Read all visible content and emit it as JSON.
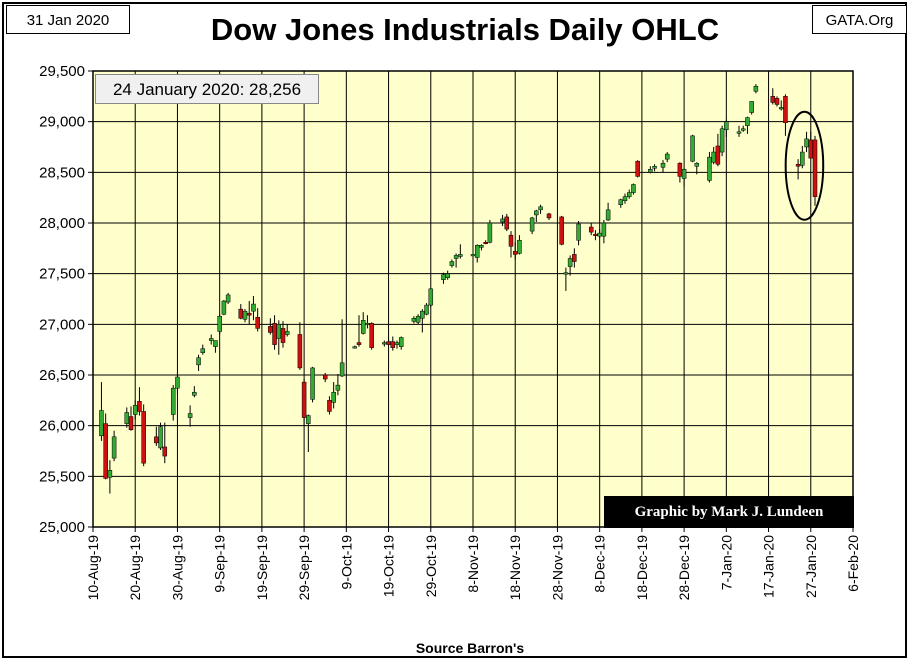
{
  "header": {
    "date": "31 Jan 2020",
    "site": "GATA.Org",
    "title": "Dow Jones Industrials Daily OHLC"
  },
  "annotation": "24 January 2020: 28,256",
  "credit": "Graphic by Mark J. Lundeen",
  "source": "Source Barron's",
  "colors": {
    "background": "#ffffcc",
    "up": "#33aa33",
    "down": "#cc1111",
    "grid": "#000000"
  },
  "chart_data": {
    "type": "ohlc-candlestick",
    "title": "Dow Jones Industrials Daily OHLC",
    "ylim": [
      25000,
      29500
    ],
    "yticks": [
      25000,
      25500,
      26000,
      26500,
      27000,
      27500,
      28000,
      28500,
      29000,
      29500
    ],
    "ytick_labels": [
      "25,000",
      "25,500",
      "26,000",
      "26,500",
      "27,000",
      "27,500",
      "28,000",
      "28,500",
      "29,000",
      "29,500"
    ],
    "xtick_labels": [
      "10-Aug-19",
      "20-Aug-19",
      "30-Aug-19",
      "9-Sep-19",
      "19-Sep-19",
      "29-Sep-19",
      "9-Oct-19",
      "19-Oct-19",
      "29-Oct-19",
      "8-Nov-19",
      "18-Nov-19",
      "28-Nov-19",
      "8-Dec-19",
      "18-Dec-19",
      "28-Dec-19",
      "7-Jan-20",
      "17-Jan-20",
      "27-Jan-20",
      "6-Feb-20"
    ],
    "xlim_days": [
      0,
      180
    ],
    "xtick_interval_days": 10,
    "highlight": {
      "label": "24 January 2020: 28,256",
      "days": [
        165,
        172
      ],
      "yrange": [
        28150,
        28980
      ]
    },
    "bars": [
      {
        "d": 2,
        "o": 25900,
        "h": 26430,
        "l": 25850,
        "c": 26150
      },
      {
        "d": 3,
        "o": 26020,
        "h": 26120,
        "l": 25470,
        "c": 25480
      },
      {
        "d": 4,
        "o": 25490,
        "h": 25660,
        "l": 25330,
        "c": 25560
      },
      {
        "d": 5,
        "o": 25680,
        "h": 25950,
        "l": 25650,
        "c": 25890
      },
      {
        "d": 8,
        "o": 26020,
        "h": 26180,
        "l": 25980,
        "c": 26130
      },
      {
        "d": 9,
        "o": 26090,
        "h": 26190,
        "l": 25950,
        "c": 25960
      },
      {
        "d": 10,
        "o": 26110,
        "h": 26250,
        "l": 26060,
        "c": 26200
      },
      {
        "d": 11,
        "o": 26240,
        "h": 26380,
        "l": 26100,
        "c": 26140
      },
      {
        "d": 12,
        "o": 26140,
        "h": 26210,
        "l": 25600,
        "c": 25630
      },
      {
        "d": 15,
        "o": 25890,
        "h": 25990,
        "l": 25800,
        "c": 25830
      },
      {
        "d": 16,
        "o": 25780,
        "h": 26030,
        "l": 25760,
        "c": 25990
      },
      {
        "d": 17,
        "o": 25790,
        "h": 26030,
        "l": 25630,
        "c": 25700
      },
      {
        "d": 19,
        "o": 26110,
        "h": 26400,
        "l": 26050,
        "c": 26370
      },
      {
        "d": 20,
        "o": 26370,
        "h": 26500,
        "l": 26320,
        "c": 26480
      },
      {
        "d": 23,
        "o": 26080,
        "h": 26200,
        "l": 25990,
        "c": 26120
      },
      {
        "d": 24,
        "o": 26300,
        "h": 26390,
        "l": 26280,
        "c": 26330
      },
      {
        "d": 25,
        "o": 26600,
        "h": 26700,
        "l": 26540,
        "c": 26670
      },
      {
        "d": 26,
        "o": 26720,
        "h": 26800,
        "l": 26700,
        "c": 26760
      },
      {
        "d": 28,
        "o": 26840,
        "h": 26900,
        "l": 26800,
        "c": 26860
      },
      {
        "d": 29,
        "o": 26780,
        "h": 26840,
        "l": 26720,
        "c": 26840
      },
      {
        "d": 30,
        "o": 26930,
        "h": 27100,
        "l": 26900,
        "c": 27080
      },
      {
        "d": 31,
        "o": 27100,
        "h": 27240,
        "l": 27090,
        "c": 27230
      },
      {
        "d": 32,
        "o": 27220,
        "h": 27310,
        "l": 27200,
        "c": 27290
      },
      {
        "d": 35,
        "o": 27150,
        "h": 27200,
        "l": 27050,
        "c": 27060
      },
      {
        "d": 36,
        "o": 27050,
        "h": 27150,
        "l": 27020,
        "c": 27130
      },
      {
        "d": 37,
        "o": 27110,
        "h": 27230,
        "l": 27000,
        "c": 27090
      },
      {
        "d": 38,
        "o": 27130,
        "h": 27280,
        "l": 27040,
        "c": 27200
      },
      {
        "d": 39,
        "o": 27070,
        "h": 27160,
        "l": 26930,
        "c": 26960
      },
      {
        "d": 42,
        "o": 26980,
        "h": 27060,
        "l": 26900,
        "c": 26920
      },
      {
        "d": 43,
        "o": 27010,
        "h": 27090,
        "l": 26750,
        "c": 26800
      },
      {
        "d": 44,
        "o": 26860,
        "h": 27040,
        "l": 26700,
        "c": 27000
      },
      {
        "d": 45,
        "o": 26960,
        "h": 27030,
        "l": 26770,
        "c": 26820
      },
      {
        "d": 46,
        "o": 26900,
        "h": 27000,
        "l": 26880,
        "c": 26930
      },
      {
        "d": 49,
        "o": 26900,
        "h": 27020,
        "l": 26550,
        "c": 26570
      },
      {
        "d": 50,
        "o": 26430,
        "h": 26460,
        "l": 26010,
        "c": 26080
      },
      {
        "d": 51,
        "o": 26020,
        "h": 26110,
        "l": 25740,
        "c": 26100
      },
      {
        "d": 52,
        "o": 26260,
        "h": 26580,
        "l": 26230,
        "c": 26570
      },
      {
        "d": 55,
        "o": 26500,
        "h": 26520,
        "l": 26430,
        "c": 26460
      },
      {
        "d": 56,
        "o": 26250,
        "h": 26290,
        "l": 26110,
        "c": 26140
      },
      {
        "d": 57,
        "o": 26230,
        "h": 26430,
        "l": 26170,
        "c": 26330
      },
      {
        "d": 58,
        "o": 26350,
        "h": 26510,
        "l": 26300,
        "c": 26400
      },
      {
        "d": 59,
        "o": 26490,
        "h": 27050,
        "l": 26480,
        "c": 26620
      },
      {
        "d": 62,
        "o": 26780,
        "h": 26790,
        "l": 26760,
        "c": 26780
      },
      {
        "d": 63,
        "o": 26820,
        "h": 27090,
        "l": 26780,
        "c": 26800
      },
      {
        "d": 64,
        "o": 26910,
        "h": 27120,
        "l": 26900,
        "c": 27040
      },
      {
        "d": 65,
        "o": 27000,
        "h": 27090,
        "l": 26960,
        "c": 27010
      },
      {
        "d": 66,
        "o": 27010,
        "h": 27020,
        "l": 26750,
        "c": 26770
      },
      {
        "d": 69,
        "o": 26810,
        "h": 26840,
        "l": 26780,
        "c": 26820
      },
      {
        "d": 70,
        "o": 26830,
        "h": 26870,
        "l": 26790,
        "c": 26800
      },
      {
        "d": 71,
        "o": 26830,
        "h": 26880,
        "l": 26740,
        "c": 26770
      },
      {
        "d": 72,
        "o": 26800,
        "h": 26840,
        "l": 26760,
        "c": 26820
      },
      {
        "d": 73,
        "o": 26780,
        "h": 26880,
        "l": 26750,
        "c": 26870
      },
      {
        "d": 76,
        "o": 27030,
        "h": 27080,
        "l": 27010,
        "c": 27060
      },
      {
        "d": 77,
        "o": 27020,
        "h": 27100,
        "l": 27000,
        "c": 27080
      },
      {
        "d": 78,
        "o": 27060,
        "h": 27150,
        "l": 26920,
        "c": 27130
      },
      {
        "d": 79,
        "o": 27100,
        "h": 27210,
        "l": 27090,
        "c": 27190
      },
      {
        "d": 80,
        "o": 27190,
        "h": 27360,
        "l": 27170,
        "c": 27350
      },
      {
        "d": 83,
        "o": 27440,
        "h": 27510,
        "l": 27400,
        "c": 27490
      },
      {
        "d": 84,
        "o": 27460,
        "h": 27530,
        "l": 27440,
        "c": 27500
      },
      {
        "d": 85,
        "o": 27580,
        "h": 27640,
        "l": 27560,
        "c": 27620
      },
      {
        "d": 86,
        "o": 27650,
        "h": 27700,
        "l": 27560,
        "c": 27680
      },
      {
        "d": 87,
        "o": 27670,
        "h": 27790,
        "l": 27650,
        "c": 27690
      },
      {
        "d": 90,
        "o": 27680,
        "h": 27700,
        "l": 27520,
        "c": 27690
      },
      {
        "d": 91,
        "o": 27660,
        "h": 27790,
        "l": 27610,
        "c": 27780
      },
      {
        "d": 92,
        "o": 27760,
        "h": 27790,
        "l": 27730,
        "c": 27780
      },
      {
        "d": 93,
        "o": 27810,
        "h": 27830,
        "l": 27790,
        "c": 27800
      },
      {
        "d": 94,
        "o": 27810,
        "h": 28030,
        "l": 27800,
        "c": 28000
      },
      {
        "d": 97,
        "o": 28010,
        "h": 28080,
        "l": 27970,
        "c": 28040
      },
      {
        "d": 98,
        "o": 28060,
        "h": 28090,
        "l": 27920,
        "c": 27940
      },
      {
        "d": 99,
        "o": 27880,
        "h": 27920,
        "l": 27660,
        "c": 27770
      },
      {
        "d": 100,
        "o": 27720,
        "h": 27810,
        "l": 27640,
        "c": 27690
      },
      {
        "d": 101,
        "o": 27700,
        "h": 27880,
        "l": 27690,
        "c": 27830
      },
      {
        "d": 104,
        "o": 27920,
        "h": 28060,
        "l": 27890,
        "c": 28050
      },
      {
        "d": 105,
        "o": 28080,
        "h": 28130,
        "l": 28010,
        "c": 28120
      },
      {
        "d": 106,
        "o": 28130,
        "h": 28180,
        "l": 28090,
        "c": 28160
      },
      {
        "d": 108,
        "o": 28090,
        "h": 28100,
        "l": 28030,
        "c": 28050
      },
      {
        "d": 111,
        "o": 28060,
        "h": 28070,
        "l": 27780,
        "c": 27790
      },
      {
        "d": 112,
        "o": 27500,
        "h": 27560,
        "l": 27330,
        "c": 27510
      },
      {
        "d": 113,
        "o": 27570,
        "h": 27680,
        "l": 27480,
        "c": 27650
      },
      {
        "d": 114,
        "o": 27690,
        "h": 27750,
        "l": 27560,
        "c": 27620
      },
      {
        "d": 115,
        "o": 27830,
        "h": 28020,
        "l": 27780,
        "c": 27990
      },
      {
        "d": 118,
        "o": 27960,
        "h": 28000,
        "l": 27880,
        "c": 27910
      },
      {
        "d": 119,
        "o": 27890,
        "h": 27930,
        "l": 27830,
        "c": 27880
      },
      {
        "d": 120,
        "o": 27870,
        "h": 27940,
        "l": 27850,
        "c": 27900
      },
      {
        "d": 121,
        "o": 27870,
        "h": 28030,
        "l": 27800,
        "c": 28000
      },
      {
        "d": 122,
        "o": 28030,
        "h": 28200,
        "l": 28020,
        "c": 28130
      },
      {
        "d": 125,
        "o": 28180,
        "h": 28240,
        "l": 28150,
        "c": 28230
      },
      {
        "d": 126,
        "o": 28220,
        "h": 28290,
        "l": 28190,
        "c": 28260
      },
      {
        "d": 127,
        "o": 28260,
        "h": 28330,
        "l": 28240,
        "c": 28300
      },
      {
        "d": 128,
        "o": 28300,
        "h": 28390,
        "l": 28280,
        "c": 28380
      },
      {
        "d": 129,
        "o": 28610,
        "h": 28620,
        "l": 28450,
        "c": 28460
      },
      {
        "d": 132,
        "o": 28500,
        "h": 28560,
        "l": 28490,
        "c": 28530
      },
      {
        "d": 133,
        "o": 28540,
        "h": 28580,
        "l": 28510,
        "c": 28560
      },
      {
        "d": 135,
        "o": 28550,
        "h": 28620,
        "l": 28500,
        "c": 28590
      },
      {
        "d": 136,
        "o": 28630,
        "h": 28700,
        "l": 28600,
        "c": 28680
      },
      {
        "d": 139,
        "o": 28590,
        "h": 28600,
        "l": 28400,
        "c": 28460
      },
      {
        "d": 140,
        "o": 28440,
        "h": 28540,
        "l": 28360,
        "c": 28530
      },
      {
        "d": 142,
        "o": 28610,
        "h": 28870,
        "l": 28600,
        "c": 28860
      },
      {
        "d": 143,
        "o": 28560,
        "h": 28600,
        "l": 28480,
        "c": 28590
      },
      {
        "d": 146,
        "o": 28420,
        "h": 28700,
        "l": 28400,
        "c": 28650
      },
      {
        "d": 147,
        "o": 28600,
        "h": 28750,
        "l": 28580,
        "c": 28700
      },
      {
        "d": 148,
        "o": 28760,
        "h": 28880,
        "l": 28560,
        "c": 28580
      },
      {
        "d": 149,
        "o": 28700,
        "h": 28960,
        "l": 28660,
        "c": 28930
      },
      {
        "d": 150,
        "o": 28920,
        "h": 29020,
        "l": 28850,
        "c": 29000
      },
      {
        "d": 153,
        "o": 28890,
        "h": 28960,
        "l": 28850,
        "c": 28900
      },
      {
        "d": 154,
        "o": 28920,
        "h": 28960,
        "l": 28900,
        "c": 28930
      },
      {
        "d": 155,
        "o": 28960,
        "h": 29050,
        "l": 28880,
        "c": 29040
      },
      {
        "d": 156,
        "o": 29090,
        "h": 29200,
        "l": 29070,
        "c": 29200
      },
      {
        "d": 157,
        "o": 29300,
        "h": 29370,
        "l": 29280,
        "c": 29350
      },
      {
        "d": 161,
        "o": 29250,
        "h": 29330,
        "l": 29170,
        "c": 29190
      },
      {
        "d": 162,
        "o": 29230,
        "h": 29250,
        "l": 29150,
        "c": 29170
      },
      {
        "d": 163,
        "o": 29140,
        "h": 29210,
        "l": 29110,
        "c": 29140
      },
      {
        "d": 164,
        "o": 29250,
        "h": 29270,
        "l": 28860,
        "c": 28990
      },
      {
        "d": 167,
        "o": 28580,
        "h": 28630,
        "l": 28430,
        "c": 28560
      },
      {
        "d": 168,
        "o": 28570,
        "h": 28760,
        "l": 28540,
        "c": 28700
      },
      {
        "d": 169,
        "o": 28750,
        "h": 28900,
        "l": 28700,
        "c": 28830
      },
      {
        "d": 170,
        "o": 28820,
        "h": 28900,
        "l": 28640,
        "c": 28640
      },
      {
        "d": 171,
        "o": 28820,
        "h": 28860,
        "l": 28170,
        "c": 28260
      }
    ]
  }
}
